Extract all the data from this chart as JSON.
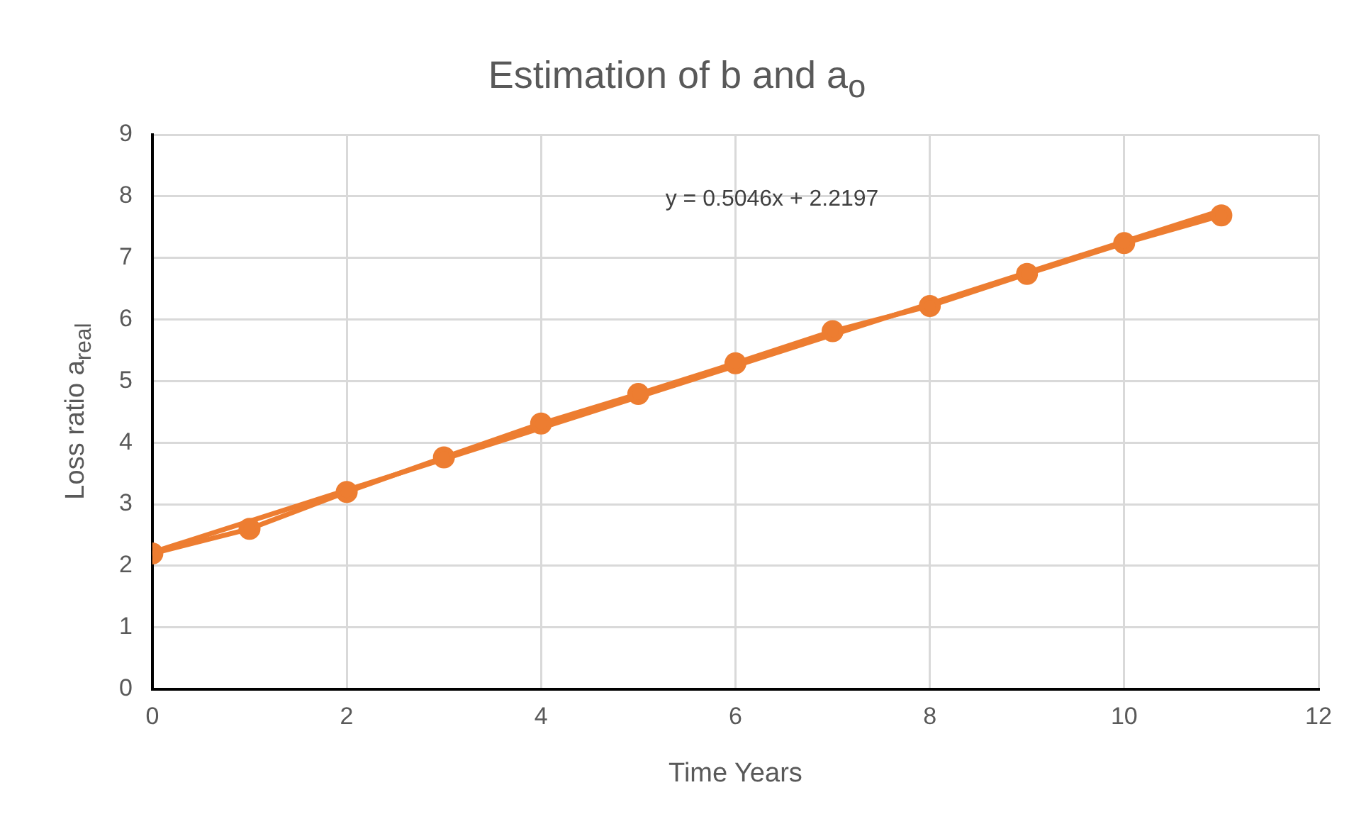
{
  "chart_data": {
    "type": "line",
    "title": "Estimation of b and a$_{o}$",
    "xlabel": "Time Years",
    "ylabel": "Loss ratio a$_{real}$",
    "x": [
      0,
      1,
      2,
      3,
      4,
      5,
      6,
      7,
      8,
      9,
      10,
      11
    ],
    "series": [
      {
        "color": "#ed7d31",
        "values": [
          2.2,
          2.6,
          3.2,
          3.76,
          4.31,
          4.79,
          5.29,
          5.81,
          6.22,
          6.74,
          7.24,
          7.69
        ],
        "marker": "circle"
      },
      {
        "type": "line",
        "color": "#ed7d31",
        "x": [
          0,
          11
        ],
        "values": [
          2.22,
          7.77
        ],
        "marker": "none"
      }
    ],
    "xlim": [
      0,
      12
    ],
    "xticks": [
      0,
      2,
      4,
      6,
      8,
      10,
      12
    ],
    "ylim": [
      0,
      9
    ],
    "yticks": [
      0,
      1,
      2,
      3,
      4,
      5,
      6,
      7,
      8,
      9
    ],
    "annotations": [
      "y = 0.5046x + 2.2197"
    ],
    "grid": true,
    "legend": false
  }
}
